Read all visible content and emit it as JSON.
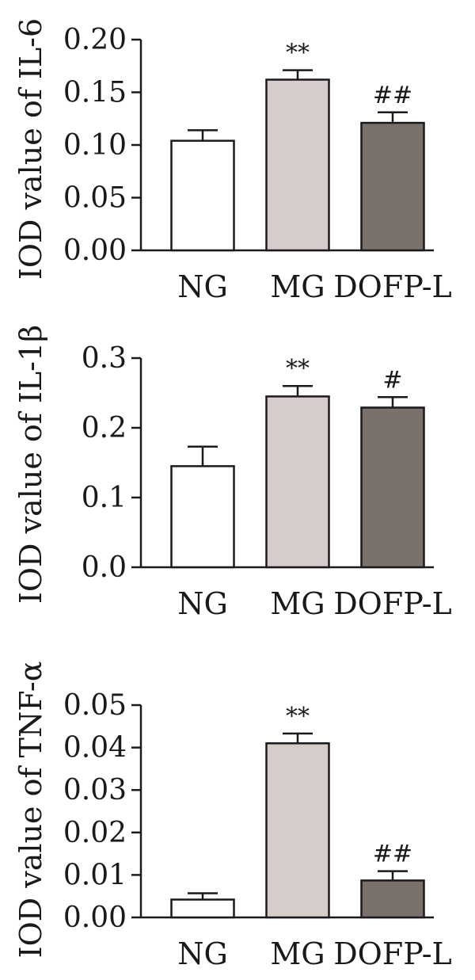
{
  "chart_data": [
    {
      "type": "bar",
      "ylabel": "IOD value of IL-6",
      "categories": [
        "NG",
        "MG",
        "DOFP-L"
      ],
      "values": [
        0.104,
        0.162,
        0.121
      ],
      "errors": [
        0.01,
        0.009,
        0.01
      ],
      "significance": [
        "",
        "**",
        "##"
      ],
      "ylim": [
        0,
        0.2
      ],
      "yticks": [
        "0.00",
        "0.05",
        "0.10",
        "0.15",
        "0.20"
      ],
      "colors": [
        "#ffffff",
        "#d4cdc9",
        "#7b716c"
      ]
    },
    {
      "type": "bar",
      "ylabel": "IOD value of IL-1β",
      "categories": [
        "NG",
        "MG",
        "DOFP-L"
      ],
      "values": [
        0.145,
        0.245,
        0.229
      ],
      "errors": [
        0.028,
        0.015,
        0.015
      ],
      "significance": [
        "",
        "**",
        "#"
      ],
      "ylim": [
        0,
        0.3
      ],
      "yticks": [
        "0.0",
        "0.1",
        "0.2",
        "0.3"
      ],
      "colors": [
        "#ffffff",
        "#d4cdc9",
        "#7b716c"
      ]
    },
    {
      "type": "bar",
      "ylabel": "IOD value of TNF-α",
      "categories": [
        "NG",
        "MG",
        "DOFP-L"
      ],
      "values": [
        0.0042,
        0.041,
        0.0087
      ],
      "errors": [
        0.0015,
        0.0023,
        0.0022
      ],
      "significance": [
        "",
        "**",
        "##"
      ],
      "ylim": [
        0,
        0.05
      ],
      "yticks": [
        "0.00",
        "0.01",
        "0.02",
        "0.03",
        "0.04",
        "0.05"
      ],
      "colors": [
        "#ffffff",
        "#d4cdc9",
        "#7b716c"
      ]
    }
  ]
}
